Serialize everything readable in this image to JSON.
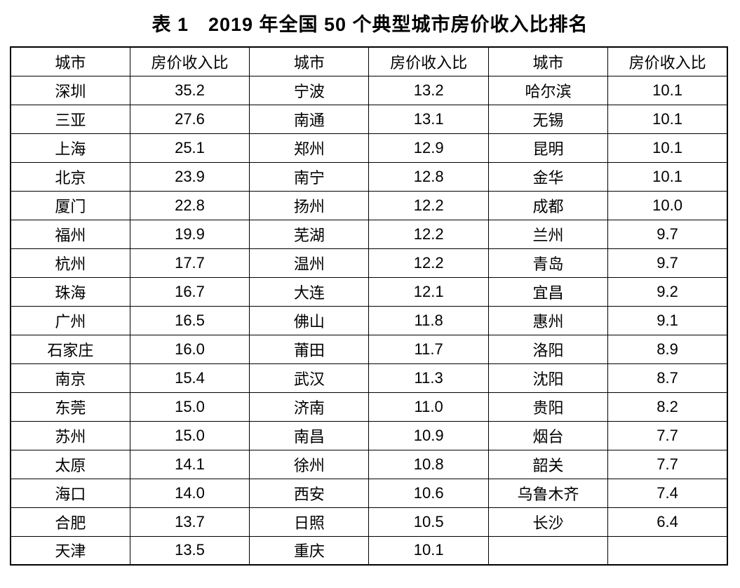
{
  "title": "表 1　2019 年全国 50 个典型城市房价收入比排名",
  "table": {
    "header": [
      "城市",
      "房价收入比",
      "城市",
      "房价收入比",
      "城市",
      "房价收入比"
    ],
    "rows": [
      [
        "深圳",
        "35.2",
        "宁波",
        "13.2",
        "哈尔滨",
        "10.1"
      ],
      [
        "三亚",
        "27.6",
        "南通",
        "13.1",
        "无锡",
        "10.1"
      ],
      [
        "上海",
        "25.1",
        "郑州",
        "12.9",
        "昆明",
        "10.1"
      ],
      [
        "北京",
        "23.9",
        "南宁",
        "12.8",
        "金华",
        "10.1"
      ],
      [
        "厦门",
        "22.8",
        "扬州",
        "12.2",
        "成都",
        "10.0"
      ],
      [
        "福州",
        "19.9",
        "芜湖",
        "12.2",
        "兰州",
        "9.7"
      ],
      [
        "杭州",
        "17.7",
        "温州",
        "12.2",
        "青岛",
        "9.7"
      ],
      [
        "珠海",
        "16.7",
        "大连",
        "12.1",
        "宜昌",
        "9.2"
      ],
      [
        "广州",
        "16.5",
        "佛山",
        "11.8",
        "惠州",
        "9.1"
      ],
      [
        "石家庄",
        "16.0",
        "莆田",
        "11.7",
        "洛阳",
        "8.9"
      ],
      [
        "南京",
        "15.4",
        "武汉",
        "11.3",
        "沈阳",
        "8.7"
      ],
      [
        "东莞",
        "15.0",
        "济南",
        "11.0",
        "贵阳",
        "8.2"
      ],
      [
        "苏州",
        "15.0",
        "南昌",
        "10.9",
        "烟台",
        "7.7"
      ],
      [
        "太原",
        "14.1",
        "徐州",
        "10.8",
        "韶关",
        "7.7"
      ],
      [
        "海口",
        "14.0",
        "西安",
        "10.6",
        "乌鲁木齐",
        "7.4"
      ],
      [
        "合肥",
        "13.7",
        "日照",
        "10.5",
        "长沙",
        "6.4"
      ],
      [
        "天津",
        "13.5",
        "重庆",
        "10.1",
        "",
        ""
      ]
    ],
    "colors": {
      "text": "#000000",
      "background": "#ffffff",
      "border": "#000000"
    }
  }
}
